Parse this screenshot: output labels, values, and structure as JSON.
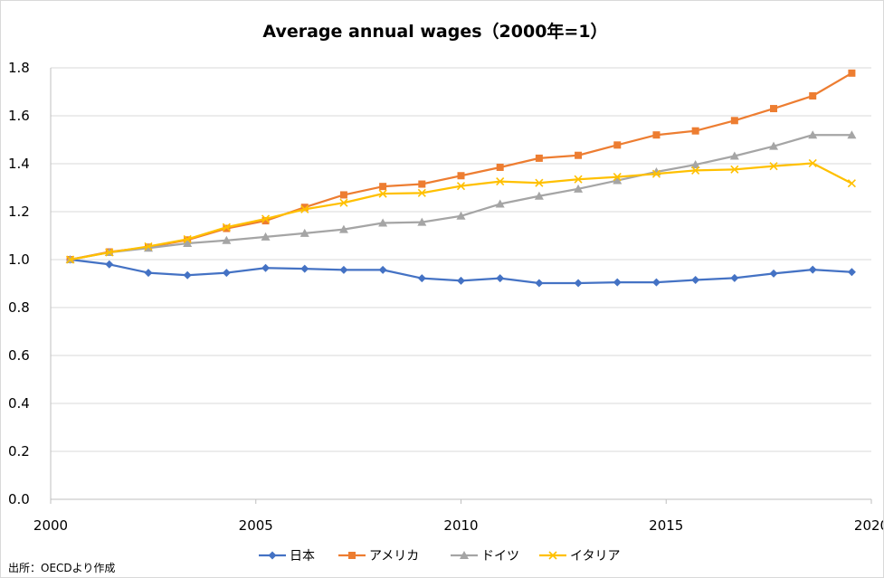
{
  "chart_data": {
    "type": "line",
    "title": "Average annual wages（2000年=1）",
    "xlabel": "",
    "ylabel": "",
    "x_tick_labels": [
      "2000",
      "2005",
      "2010",
      "2015",
      "2020"
    ],
    "y_tick_labels": [
      "0.0",
      "0.2",
      "0.4",
      "0.6",
      "0.8",
      "1.0",
      "1.2",
      "1.4",
      "1.6",
      "1.8"
    ],
    "ylim": [
      0,
      1.8
    ],
    "grid": true,
    "legend_position": "bottom",
    "x": [
      2000,
      2001,
      2002,
      2003,
      2004,
      2005,
      2006,
      2007,
      2008,
      2009,
      2010,
      2011,
      2012,
      2013,
      2014,
      2015,
      2016,
      2017,
      2018,
      2019,
      2020
    ],
    "series": [
      {
        "name": "日本",
        "color": "#4472c4",
        "marker": "diamond",
        "values": [
          1.0,
          0.98,
          0.945,
          0.935,
          0.945,
          0.965,
          0.962,
          0.957,
          0.957,
          0.922,
          0.912,
          0.922,
          0.902,
          0.902,
          0.905,
          0.905,
          0.915,
          0.923,
          0.942,
          0.958,
          0.948
        ]
      },
      {
        "name": "アメリカ",
        "color": "#ed7d31",
        "marker": "square",
        "values": [
          1.0,
          1.032,
          1.052,
          1.082,
          1.13,
          1.162,
          1.218,
          1.27,
          1.305,
          1.315,
          1.35,
          1.385,
          1.423,
          1.435,
          1.478,
          1.52,
          1.537,
          1.58,
          1.63,
          1.683,
          1.778
        ]
      },
      {
        "name": "ドイツ",
        "color": "#a5a5a5",
        "marker": "triangle",
        "values": [
          1.0,
          1.03,
          1.048,
          1.068,
          1.08,
          1.095,
          1.11,
          1.126,
          1.153,
          1.156,
          1.182,
          1.232,
          1.265,
          1.295,
          1.33,
          1.366,
          1.396,
          1.432,
          1.473,
          1.52,
          1.52
        ]
      },
      {
        "name": "イタリア",
        "color": "#ffc000",
        "marker": "x",
        "values": [
          1.0,
          1.03,
          1.055,
          1.085,
          1.135,
          1.17,
          1.21,
          1.237,
          1.275,
          1.278,
          1.307,
          1.326,
          1.32,
          1.335,
          1.345,
          1.358,
          1.372,
          1.376,
          1.39,
          1.402,
          1.318
        ]
      }
    ]
  },
  "footer": {
    "source_note": "出所：OECDより作成"
  }
}
